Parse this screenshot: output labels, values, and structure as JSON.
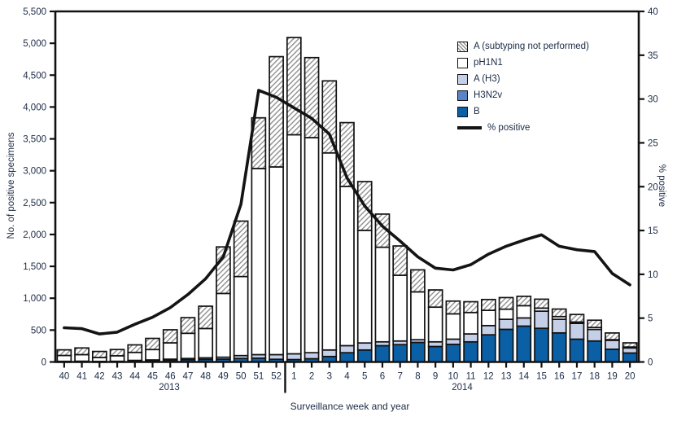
{
  "axes": {
    "left_label": "No. of positive specimens",
    "right_label": "% positive",
    "x_label": "Surveillance week and year",
    "left_tick_labels": [
      "0",
      "500",
      "1,000",
      "1,500",
      "2,000",
      "2,500",
      "3,000",
      "3,500",
      "4,000",
      "4,500",
      "5,000",
      "5,500"
    ],
    "left_tick_values": [
      0,
      500,
      1000,
      1500,
      2000,
      2500,
      3000,
      3500,
      4000,
      4500,
      5000,
      5500
    ],
    "right_tick_labels": [
      "0",
      "5",
      "10",
      "15",
      "20",
      "25",
      "30",
      "35",
      "40"
    ],
    "right_tick_values": [
      0,
      5,
      10,
      15,
      20,
      25,
      30,
      35,
      40
    ],
    "years": [
      "2013",
      "2014"
    ]
  },
  "legend": {
    "items": [
      {
        "label": "A (subtyping not performed)",
        "swatch": "hatch"
      },
      {
        "label": "pH1N1",
        "swatch": "white"
      },
      {
        "label": "A (H3)",
        "swatch": "light_blue"
      },
      {
        "label": "H3N2v",
        "swatch": "medium_blue"
      },
      {
        "label": "B",
        "swatch": "dark_blue"
      },
      {
        "label": "% positive",
        "swatch": "line"
      }
    ]
  },
  "colors": {
    "dark_blue": "#0b5fa5",
    "medium_blue": "#5b84c6",
    "light_blue": "#c5cfe8",
    "white": "#ffffff",
    "hatch_line": "#8f8f8f",
    "line": "#141414",
    "axis": "#111111",
    "text": "#1c2b45"
  },
  "chart_data": {
    "type": "bar",
    "stacked": true,
    "title": "",
    "xlabel": "Surveillance week and year",
    "ylabel_left": "No. of positive specimens",
    "ylabel_right": "% positive",
    "ylim_left": [
      0,
      5500
    ],
    "ylim_right": [
      0,
      40
    ],
    "grid": false,
    "legend_position": "upper right",
    "categories": [
      "40",
      "41",
      "42",
      "43",
      "44",
      "45",
      "46",
      "47",
      "48",
      "49",
      "50",
      "51",
      "52",
      "1",
      "2",
      "3",
      "4",
      "5",
      "6",
      "7",
      "8",
      "9",
      "10",
      "11",
      "12",
      "13",
      "14",
      "15",
      "16",
      "17",
      "18",
      "19",
      "20"
    ],
    "category_years": [
      "2013",
      "2013",
      "2013",
      "2013",
      "2013",
      "2013",
      "2013",
      "2013",
      "2013",
      "2013",
      "2013",
      "2013",
      "2013",
      "2014",
      "2014",
      "2014",
      "2014",
      "2014",
      "2014",
      "2014",
      "2014",
      "2014",
      "2014",
      "2014",
      "2014",
      "2014",
      "2014",
      "2014",
      "2014",
      "2014",
      "2014",
      "2014",
      "2014"
    ],
    "series": [
      {
        "name": "B",
        "color_key": "dark_blue",
        "values": [
          4,
          5,
          4,
          5,
          15,
          20,
          28,
          35,
          40,
          45,
          55,
          60,
          42,
          38,
          51,
          86,
          145,
          188,
          256,
          272,
          307,
          243,
          277,
          316,
          426,
          512,
          563,
          528,
          456,
          358,
          329,
          200,
          141
        ]
      },
      {
        "name": "H3N2v",
        "color_key": "medium_blue",
        "values": [
          0,
          0,
          0,
          0,
          0,
          0,
          0,
          0,
          0,
          0,
          0,
          0,
          0,
          0,
          0,
          0,
          0,
          0,
          0,
          0,
          0,
          0,
          0,
          0,
          0,
          0,
          0,
          0,
          0,
          0,
          0,
          0,
          0
        ]
      },
      {
        "name": "A (H3)",
        "color_key": "light_blue",
        "values": [
          6,
          7,
          5,
          6,
          10,
          12,
          16,
          20,
          25,
          30,
          45,
          55,
          73,
          90,
          94,
          102,
          111,
          110,
          60,
          57,
          42,
          73,
          81,
          124,
          145,
          157,
          128,
          269,
          213,
          247,
          181,
          140,
          79
        ]
      },
      {
        "name": "pH1N1",
        "color_key": "white",
        "values": [
          92,
          103,
          61,
          86,
          125,
          163,
          256,
          395,
          460,
          1000,
          1240,
          2920,
          2945,
          3437,
          3375,
          3092,
          2499,
          1767,
          1484,
          1031,
          751,
          544,
          397,
          336,
          239,
          159,
          192,
          48,
          43,
          22,
          31,
          10,
          15
        ]
      },
      {
        "name": "A (subtyping not performed)",
        "color_key": "hatch",
        "values": [
          88,
          105,
          95,
          98,
          118,
          175,
          205,
          245,
          350,
          730,
          870,
          795,
          1730,
          1525,
          1255,
          1130,
          1000,
          765,
          520,
          460,
          345,
          270,
          200,
          169,
          170,
          182,
          147,
          140,
          118,
          118,
          114,
          105,
          65
        ]
      }
    ],
    "bar_totals": [
      190,
      220,
      165,
      195,
      268,
      370,
      505,
      695,
      875,
      1805,
      2210,
      3830,
      4790,
      5090,
      4775,
      4410,
      3755,
      2830,
      2320,
      1820,
      1445,
      1130,
      955,
      945,
      980,
      1010,
      1030,
      985,
      830,
      745,
      655,
      455,
      300
    ],
    "line_series": {
      "name": "% positive",
      "axis": "right",
      "values": [
        3.9,
        3.8,
        3.2,
        3.4,
        4.3,
        5.1,
        6.2,
        7.7,
        9.5,
        12.0,
        18.0,
        31.0,
        30.2,
        29.0,
        27.8,
        26.0,
        21.0,
        17.8,
        15.5,
        13.8,
        12.0,
        10.7,
        10.5,
        11.1,
        12.3,
        13.2,
        13.9,
        14.5,
        13.2,
        12.8,
        12.6,
        10.1,
        8.8
      ]
    }
  }
}
